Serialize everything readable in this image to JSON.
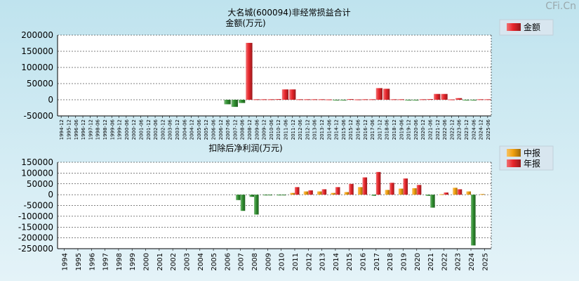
{
  "watermark": "CFi.Cn",
  "colors": {
    "red": "#e8262b",
    "green": "#2f8f2f",
    "orange": "#f2a10f"
  },
  "chart_data": [
    {
      "type": "bar",
      "title": "大名城(600094)非经常损益合计",
      "ylabel": "金额(万元)",
      "legend": [
        {
          "name": "金额",
          "color": "#e8262b"
        }
      ],
      "legend_position": "top-right",
      "grid": true,
      "ylim": [
        -50000,
        200000
      ],
      "yticks": [
        200000,
        150000,
        100000,
        50000,
        0,
        -50000
      ],
      "categories": [
        "1994-12",
        "1995-12",
        "1996-06",
        "1996-12",
        "1997-12",
        "1998-06",
        "1998-12",
        "1999-06",
        "1999-12",
        "2000-06",
        "2000-12",
        "2001-06",
        "2001-12",
        "2002-06",
        "2002-12",
        "2003-06",
        "2003-12",
        "2004-06",
        "2004-12",
        "2005-06",
        "2005-12",
        "2006-06",
        "2006-12",
        "2007-06",
        "2007-12",
        "2008-06",
        "2008-12",
        "2009-06",
        "2009-12",
        "2010-06",
        "2010-12",
        "2011-06",
        "2011-12",
        "2012-06",
        "2012-12",
        "2013-06",
        "2013-12",
        "2014-06",
        "2014-12",
        "2015-06",
        "2015-12",
        "2016-06",
        "2016-12",
        "2017-06",
        "2017-12",
        "2018-06",
        "2018-12",
        "2019-06",
        "2019-12",
        "2020-06",
        "2020-12",
        "2021-06",
        "2021-12",
        "2022-06",
        "2022-12",
        "2023-06",
        "2023-12",
        "2024-06",
        "2024-12",
        "2025-06"
      ],
      "values": [
        0,
        0,
        0,
        0,
        0,
        0,
        0,
        0,
        0,
        0,
        0,
        0,
        0,
        0,
        0,
        0,
        0,
        0,
        0,
        0,
        0,
        0,
        0,
        -14000,
        -22000,
        -10000,
        176000,
        1500,
        1500,
        1500,
        2000,
        32000,
        32000,
        1500,
        1500,
        1500,
        1500,
        1000,
        -2000,
        -1000,
        2000,
        1000,
        1500,
        1500,
        36000,
        34000,
        1500,
        1500,
        -1500,
        -1000,
        1500,
        2000,
        18000,
        18000,
        1000,
        5000,
        -1500,
        -1500,
        1500,
        1500
      ]
    },
    {
      "type": "bar",
      "title": "扣除后净利润(万元)",
      "legend": [
        {
          "name": "中报",
          "color": "#f2a10f"
        },
        {
          "name": "年报",
          "color": "#e8262b"
        }
      ],
      "legend_position": "top-right",
      "grid": true,
      "ylim": [
        -250000,
        150000
      ],
      "yticks": [
        150000,
        100000,
        50000,
        0,
        -50000,
        -100000,
        -150000,
        -200000,
        -250000
      ],
      "categories": [
        "1994",
        "1995",
        "1996",
        "1997",
        "1998",
        "1999",
        "2000",
        "2001",
        "2002",
        "2003",
        "2004",
        "2005",
        "2006",
        "2007",
        "2008",
        "2009",
        "2010",
        "2011",
        "2012",
        "2013",
        "2014",
        "2015",
        "2016",
        "2017",
        "2018",
        "2019",
        "2020",
        "2021",
        "2022",
        "2023",
        "2024",
        "2025"
      ],
      "series": [
        {
          "name": "中报",
          "values": [
            null,
            null,
            null,
            null,
            null,
            null,
            null,
            null,
            null,
            null,
            null,
            null,
            null,
            -25000,
            -10000,
            -3000,
            -1000,
            8000,
            15000,
            15000,
            8000,
            12000,
            35000,
            -5000,
            22000,
            28000,
            30000,
            -5000,
            2000,
            32000,
            15000,
            3000
          ]
        },
        {
          "name": "年报",
          "values": [
            null,
            null,
            null,
            null,
            null,
            null,
            null,
            null,
            null,
            null,
            null,
            null,
            null,
            -75000,
            -92000,
            -3000,
            -2000,
            35000,
            20000,
            25000,
            35000,
            50000,
            80000,
            105000,
            55000,
            75000,
            45000,
            -60000,
            10000,
            25000,
            -235000,
            null
          ]
        }
      ]
    }
  ]
}
